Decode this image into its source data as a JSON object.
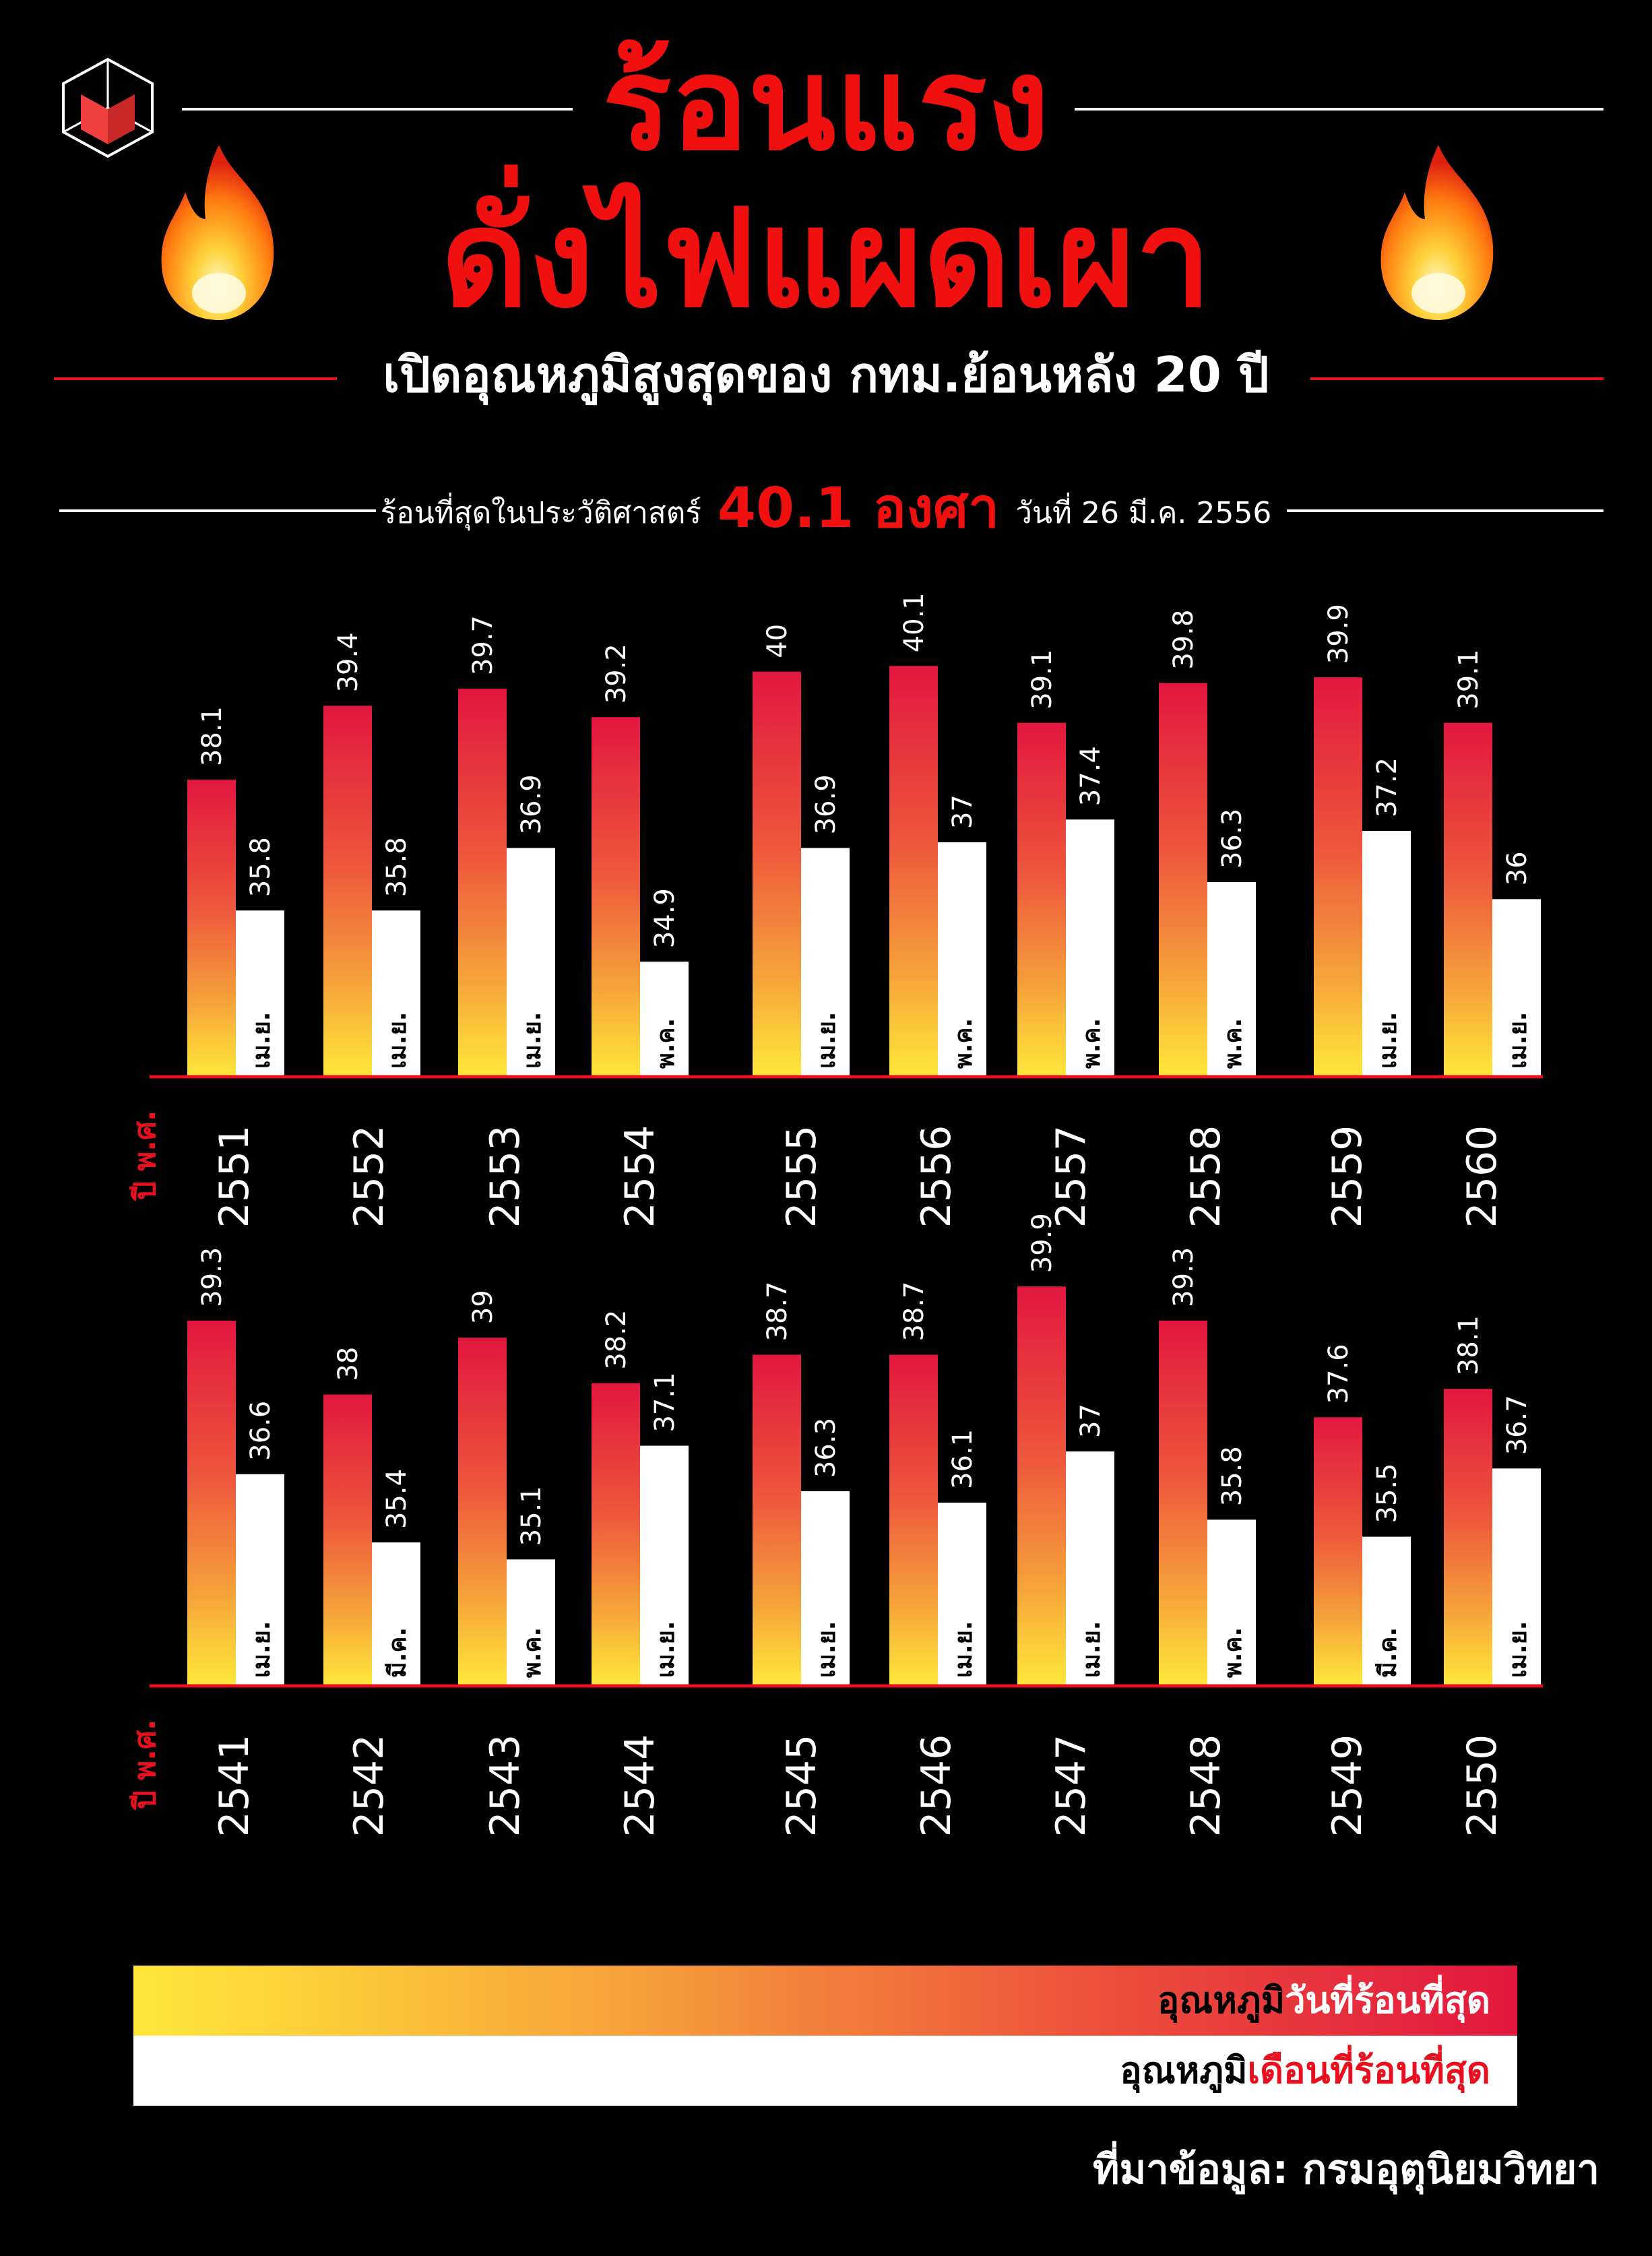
{
  "header": {
    "title_line1": "ร้อนแรง",
    "title_line2": "ดั่งไฟแผดเผา",
    "subtitle": "เปิดอุณหภูมิสูงสุดของ กทม.ย้อนหลัง 20 ปี",
    "record_prefix": "ร้อนที่สุดในประวัติศาสตร์",
    "record_value": "40.1 องศา",
    "record_date": "วันที่ 26 มี.ค. 2556"
  },
  "icons": {
    "logo": "cube-logo-icon",
    "fire_left": "fire-icon",
    "fire_right": "fire-icon"
  },
  "colors": {
    "accent": "#e8101e",
    "hot_top": "#e3173e",
    "hot_bottom": "#ffe83a",
    "month_bar": "#ffffff"
  },
  "axis_label": "ปี พ.ศ.",
  "chart_data": [
    {
      "type": "bar",
      "categories": [
        "2551",
        "2552",
        "2553",
        "2554",
        "2555",
        "2556",
        "2557",
        "2558",
        "2559",
        "2560"
      ],
      "series": [
        {
          "name": "อุณหภูมิวันที่ร้อนที่สุด",
          "values": [
            38.1,
            39.4,
            39.7,
            39.2,
            40,
            40.1,
            39.1,
            39.8,
            39.9,
            39.1
          ]
        },
        {
          "name": "อุณหภูมิเดือนที่ร้อนที่สุด",
          "values": [
            35.8,
            35.8,
            36.9,
            34.9,
            36.9,
            37,
            37.4,
            36.3,
            37.2,
            36
          ],
          "months": [
            "เม.ย.",
            "เม.ย.",
            "เม.ย.",
            "พ.ค.",
            "เม.ย.",
            "พ.ค.",
            "พ.ค.",
            "พ.ค.",
            "เม.ย.",
            "เม.ย."
          ]
        }
      ],
      "value_labels": {
        "hot": [
          "38.1",
          "39.4",
          "39.7",
          "39.2",
          "40",
          "40.1",
          "39.1",
          "39.8",
          "39.9",
          "39.1"
        ],
        "month": [
          "35.8",
          "35.8",
          "36.9",
          "34.9",
          "36.9",
          "37",
          "37.4",
          "36.3",
          "37.2",
          "36"
        ]
      },
      "xlabel": "ปี พ.ศ."
    },
    {
      "type": "bar",
      "categories": [
        "2541",
        "2542",
        "2543",
        "2544",
        "2545",
        "2546",
        "2547",
        "2548",
        "2549",
        "2550"
      ],
      "series": [
        {
          "name": "อุณหภูมิวันที่ร้อนที่สุด",
          "values": [
            39.3,
            38,
            39,
            38.2,
            38.7,
            38.7,
            39.9,
            39.3,
            37.6,
            38.1
          ]
        },
        {
          "name": "อุณหภูมิเดือนที่ร้อนที่สุด",
          "values": [
            36.6,
            35.4,
            35.1,
            37.1,
            36.3,
            36.1,
            37,
            35.8,
            35.5,
            36.7
          ],
          "months": [
            "เม.ย.",
            "มี.ค.",
            "พ.ค.",
            "เม.ย.",
            "เม.ย.",
            "เม.ย.",
            "เม.ย.",
            "พ.ค.",
            "มี.ค.",
            "เม.ย."
          ]
        }
      ],
      "value_labels": {
        "hot": [
          "39.3",
          "38",
          "39",
          "38.2",
          "38.7",
          "38.7",
          "39.9",
          "39.3",
          "37.6",
          "38.1"
        ],
        "month": [
          "36.6",
          "35.4",
          "35.1",
          "37.1",
          "36.3",
          "36.1",
          "37",
          "35.8",
          "35.5",
          "36.7"
        ]
      },
      "xlabel": "ปี พ.ศ."
    }
  ],
  "legend": {
    "hot_prefix": "อุณหภูมิ",
    "hot_highlight": "วันที่ร้อนที่สุด",
    "month_prefix": "อุณหภูมิ",
    "month_highlight": "เดือนที่ร้อนที่สุด"
  },
  "source": "ที่มาข้อมูล: กรมอุตุนิยมวิทยา"
}
